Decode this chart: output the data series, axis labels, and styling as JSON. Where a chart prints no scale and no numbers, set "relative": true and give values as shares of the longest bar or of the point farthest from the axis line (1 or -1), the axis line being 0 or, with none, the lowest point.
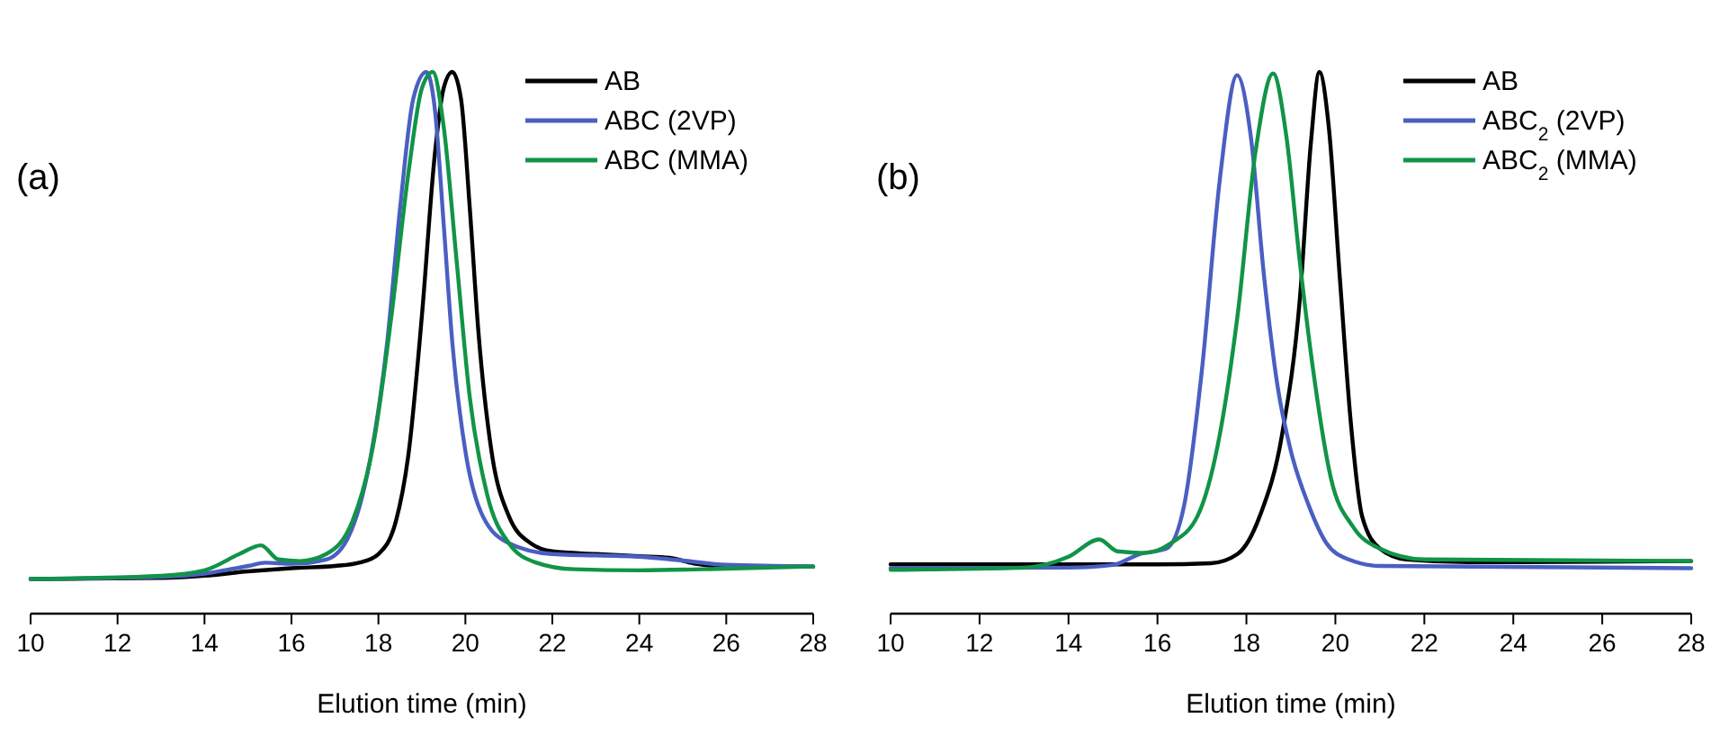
{
  "chart_data": [
    {
      "type": "line",
      "title": "(a)",
      "xlabel": "Elution time (min)",
      "relative": true,
      "xlim": [
        10,
        28
      ],
      "xticks": [
        10,
        12,
        14,
        16,
        18,
        20,
        22,
        24,
        26,
        28
      ],
      "legend": "top right",
      "series": [
        {
          "name": "AB",
          "color": "#000000",
          "x": [
            10,
            13,
            14,
            15,
            16,
            17,
            17.6,
            18,
            18.4,
            18.7,
            19,
            19.3,
            19.5,
            19.7,
            19.9,
            20.1,
            20.3,
            20.6,
            21,
            21.5,
            22,
            23,
            24,
            24.7,
            25.3,
            26,
            28
          ],
          "values": [
            0.064,
            0.066,
            0.07,
            0.078,
            0.084,
            0.088,
            0.095,
            0.11,
            0.17,
            0.3,
            0.55,
            0.85,
            0.97,
            1.0,
            0.95,
            0.75,
            0.52,
            0.3,
            0.18,
            0.13,
            0.115,
            0.11,
            0.106,
            0.103,
            0.092,
            0.087,
            0.087
          ]
        },
        {
          "name": "ABC (2VP)",
          "color": "#4a5fc1",
          "x": [
            10,
            13,
            14,
            15,
            15.4,
            16,
            16.8,
            17.3,
            17.8,
            18.2,
            18.5,
            18.8,
            19.1,
            19.3,
            19.5,
            19.7,
            20,
            20.4,
            21,
            22,
            24,
            25,
            26,
            28
          ],
          "values": [
            0.064,
            0.068,
            0.074,
            0.088,
            0.094,
            0.092,
            0.1,
            0.14,
            0.28,
            0.5,
            0.75,
            0.95,
            1.0,
            0.93,
            0.72,
            0.5,
            0.3,
            0.18,
            0.13,
            0.11,
            0.105,
            0.098,
            0.09,
            0.087
          ]
        },
        {
          "name": "ABC (MMA)",
          "color": "#119447",
          "x": [
            10,
            13,
            14,
            14.8,
            15.3,
            15.7,
            16.2,
            16.8,
            17.4,
            17.9,
            18.3,
            18.7,
            19,
            19.25,
            19.5,
            19.8,
            20.1,
            20.5,
            21,
            21.6,
            22.5,
            24,
            26,
            28
          ],
          "values": [
            0.064,
            0.07,
            0.08,
            0.11,
            0.126,
            0.1,
            0.097,
            0.11,
            0.17,
            0.32,
            0.55,
            0.82,
            0.97,
            1.0,
            0.9,
            0.65,
            0.4,
            0.22,
            0.13,
            0.095,
            0.082,
            0.08,
            0.083,
            0.087
          ]
        }
      ]
    },
    {
      "type": "line",
      "title": "(b)",
      "xlabel": "Elution time (min)",
      "relative": true,
      "xlim": [
        10,
        28
      ],
      "xticks": [
        10,
        12,
        14,
        16,
        18,
        20,
        22,
        24,
        26,
        28
      ],
      "legend": "top right",
      "series": [
        {
          "name": "AB",
          "color": "#000000",
          "x": [
            10,
            16,
            17.2,
            17.8,
            18.3,
            18.8,
            19.2,
            19.45,
            19.64,
            19.85,
            20.1,
            20.35,
            20.6,
            21,
            21.6,
            23,
            28
          ],
          "values": [
            0.091,
            0.091,
            0.093,
            0.11,
            0.18,
            0.33,
            0.58,
            0.87,
            1.0,
            0.9,
            0.62,
            0.35,
            0.18,
            0.12,
            0.1,
            0.095,
            0.097
          ]
        },
        {
          "name": "ABC$_{2}$ (2VP)",
          "color": "#4a5fc1",
          "x": [
            10,
            14,
            15,
            15.6,
            16.2,
            16.6,
            17,
            17.4,
            17.79,
            18.1,
            18.4,
            18.7,
            19,
            19.4,
            19.8,
            20.3,
            21,
            28
          ],
          "values": [
            0.084,
            0.085,
            0.09,
            0.11,
            0.12,
            0.2,
            0.45,
            0.8,
            0.994,
            0.88,
            0.62,
            0.42,
            0.3,
            0.2,
            0.13,
            0.1,
            0.088,
            0.084
          ]
        },
        {
          "name": "ABC$_{2}$ (MMA)",
          "color": "#119447",
          "x": [
            10,
            13,
            14,
            14.69,
            15.1,
            15.7,
            16.3,
            16.9,
            17.4,
            17.8,
            18.2,
            18.6,
            18.9,
            19.2,
            19.5,
            19.9,
            20.4,
            21,
            22,
            28
          ],
          "values": [
            0.081,
            0.085,
            0.105,
            0.137,
            0.115,
            0.112,
            0.13,
            0.18,
            0.33,
            0.55,
            0.85,
            0.997,
            0.88,
            0.65,
            0.45,
            0.25,
            0.16,
            0.12,
            0.1,
            0.097
          ]
        }
      ]
    }
  ]
}
